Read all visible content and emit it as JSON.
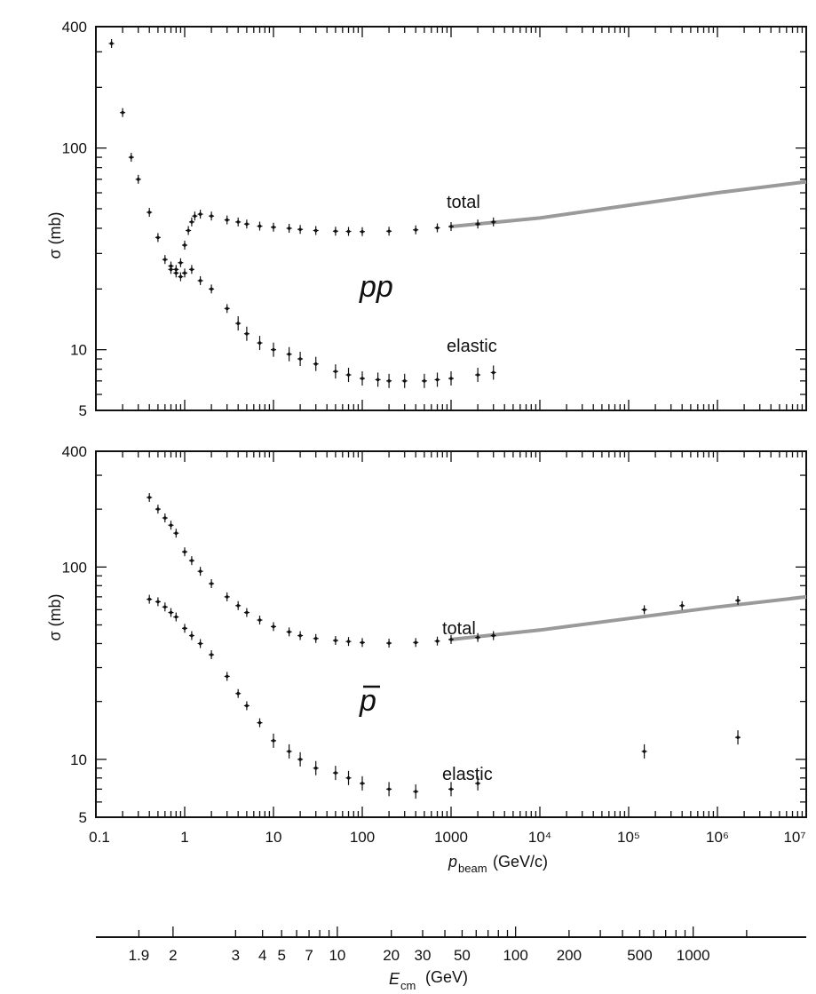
{
  "axes": {
    "beam_title_main": "p",
    "beam_title_sub": "beam",
    "beam_title_unit": "(GeV/c)",
    "beam_ticks": [
      "0.1",
      "1",
      "10",
      "100",
      "1000",
      "10⁴",
      "10⁵",
      "10⁶",
      "10⁷"
    ],
    "beam_range": [
      0.1,
      10000000
    ],
    "beam_scale": "log",
    "ecm_title_main": "E",
    "ecm_title_sub": "cm",
    "ecm_title_unit": "(GeV)",
    "ecm_ticks": [
      "1.9",
      "2",
      "3",
      "4",
      "5",
      "7",
      "10",
      "20",
      "30",
      "50",
      "100",
      "200",
      "500",
      "1000"
    ]
  },
  "panels": [
    {
      "process": "pp",
      "ylabel": "σ (mb)",
      "total_label": "total",
      "elastic_label": "elastic",
      "ylim": [
        5,
        400
      ],
      "yticks": [
        "5",
        "10",
        "100",
        "400"
      ]
    },
    {
      "process": "p",
      "ylabel": "σ (mb)",
      "total_label": "total",
      "elastic_label": "elastic",
      "ylim": [
        5,
        400
      ],
      "yticks": [
        "5",
        "10",
        "100",
        "400"
      ]
    }
  ],
  "chart_data": [
    {
      "type": "scatter",
      "process": "pp",
      "x_scale": "log",
      "y_scale": "log",
      "xlim": [
        0.1,
        10000000
      ],
      "ylim": [
        5,
        400
      ],
      "series": [
        {
          "name": "total",
          "points": [
            [
              0.15,
              330
            ],
            [
              0.2,
              150
            ],
            [
              0.25,
              90
            ],
            [
              0.3,
              70
            ],
            [
              0.4,
              48
            ],
            [
              0.5,
              36
            ],
            [
              0.6,
              28
            ],
            [
              0.7,
              26
            ],
            [
              0.8,
              25
            ],
            [
              0.9,
              27
            ],
            [
              1,
              33
            ],
            [
              1.1,
              39
            ],
            [
              1.2,
              43
            ],
            [
              1.3,
              46
            ],
            [
              1.5,
              47
            ],
            [
              2,
              46
            ],
            [
              3,
              44
            ],
            [
              4,
              43
            ],
            [
              5,
              42
            ],
            [
              7,
              41
            ],
            [
              10,
              40.5
            ],
            [
              15,
              40
            ],
            [
              20,
              39.5
            ],
            [
              30,
              39
            ],
            [
              50,
              38.7
            ],
            [
              70,
              38.6
            ],
            [
              100,
              38.5
            ],
            [
              200,
              38.7
            ],
            [
              400,
              39.3
            ],
            [
              700,
              40.2
            ],
            [
              1000,
              40.8
            ],
            [
              2000,
              42
            ],
            [
              3000,
              43
            ]
          ],
          "fit": [
            [
              1000,
              40.8
            ],
            [
              10000,
              45
            ],
            [
              100000,
              52
            ],
            [
              1000000,
              60
            ],
            [
              10000000,
              68
            ]
          ]
        },
        {
          "name": "elastic",
          "points": [
            [
              0.7,
              25
            ],
            [
              0.8,
              24
            ],
            [
              0.9,
              23
            ],
            [
              1,
              24
            ],
            [
              1.2,
              25
            ],
            [
              1.5,
              22
            ],
            [
              2,
              20
            ],
            [
              3,
              16
            ],
            [
              4,
              13.5
            ],
            [
              5,
              12
            ],
            [
              7,
              10.8
            ],
            [
              10,
              10
            ],
            [
              15,
              9.5
            ],
            [
              20,
              9
            ],
            [
              30,
              8.5
            ],
            [
              50,
              7.8
            ],
            [
              70,
              7.5
            ],
            [
              100,
              7.2
            ],
            [
              150,
              7.1
            ],
            [
              200,
              7.0
            ],
            [
              300,
              7.0
            ],
            [
              500,
              7.0
            ],
            [
              700,
              7.1
            ],
            [
              1000,
              7.2
            ],
            [
              2000,
              7.5
            ],
            [
              3000,
              7.7
            ]
          ]
        }
      ]
    },
    {
      "type": "scatter",
      "process": "p̄p",
      "x_scale": "log",
      "y_scale": "log",
      "xlim": [
        0.1,
        10000000
      ],
      "ylim": [
        5,
        400
      ],
      "series": [
        {
          "name": "total",
          "points": [
            [
              0.4,
              230
            ],
            [
              0.5,
              200
            ],
            [
              0.6,
              180
            ],
            [
              0.7,
              165
            ],
            [
              0.8,
              150
            ],
            [
              1,
              120
            ],
            [
              1.2,
              108
            ],
            [
              1.5,
              95
            ],
            [
              2,
              82
            ],
            [
              3,
              70
            ],
            [
              4,
              63
            ],
            [
              5,
              58
            ],
            [
              7,
              53
            ],
            [
              10,
              49
            ],
            [
              15,
              46
            ],
            [
              20,
              44
            ],
            [
              30,
              42.5
            ],
            [
              50,
              41.5
            ],
            [
              70,
              41
            ],
            [
              100,
              40.5
            ],
            [
              200,
              40.2
            ],
            [
              400,
              40.5
            ],
            [
              700,
              41.2
            ],
            [
              1000,
              42
            ],
            [
              2000,
              43
            ],
            [
              3000,
              44
            ],
            [
              150000,
              60
            ],
            [
              400000,
              63
            ],
            [
              1700000,
              67
            ]
          ],
          "fit": [
            [
              1000,
              42
            ],
            [
              10000,
              47
            ],
            [
              100000,
              54
            ],
            [
              1000000,
              62
            ],
            [
              10000000,
              70
            ]
          ]
        },
        {
          "name": "elastic",
          "points": [
            [
              0.4,
              68
            ],
            [
              0.5,
              66
            ],
            [
              0.6,
              62
            ],
            [
              0.7,
              58
            ],
            [
              0.8,
              55
            ],
            [
              1,
              48
            ],
            [
              1.2,
              44
            ],
            [
              1.5,
              40
            ],
            [
              2,
              35
            ],
            [
              3,
              27
            ],
            [
              4,
              22
            ],
            [
              5,
              19
            ],
            [
              7,
              15.5
            ],
            [
              10,
              12.5
            ],
            [
              15,
              11
            ],
            [
              20,
              10
            ],
            [
              30,
              9
            ],
            [
              50,
              8.5
            ],
            [
              70,
              8
            ],
            [
              100,
              7.5
            ],
            [
              200,
              7
            ],
            [
              400,
              6.8
            ],
            [
              1000,
              7
            ],
            [
              2000,
              7.5
            ],
            [
              150000,
              11
            ],
            [
              1700000,
              13
            ]
          ]
        }
      ]
    }
  ]
}
